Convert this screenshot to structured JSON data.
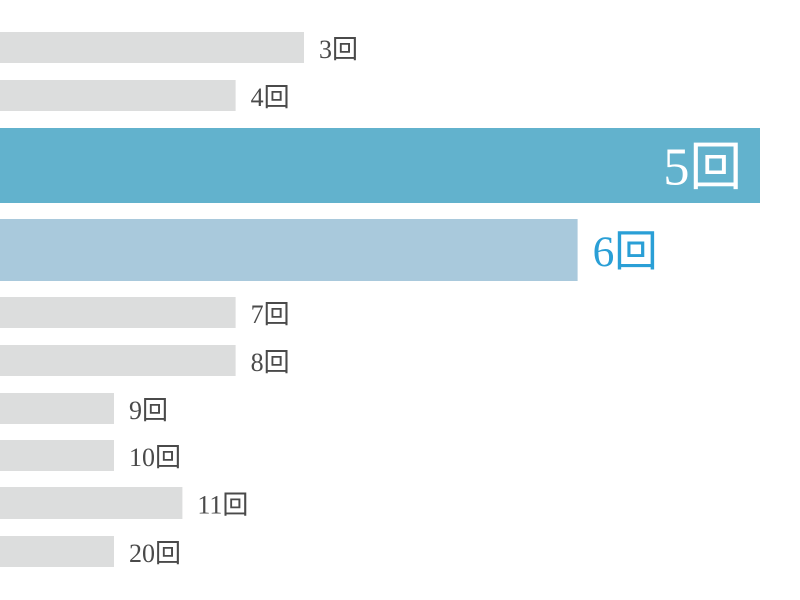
{
  "chart_data": {
    "type": "hbar",
    "categories": [
      "3回",
      "4回",
      "5回",
      "6回",
      "7回",
      "8回",
      "9回",
      "10回",
      "11回",
      "20回"
    ],
    "values": [
      40,
      31,
      100,
      76,
      31,
      31,
      15,
      15,
      24,
      15
    ],
    "colors": [
      "#dcdddd",
      "#dcdddd",
      "#62b2cd",
      "#a9c9dc",
      "#dcdddd",
      "#dcdddd",
      "#dcdddd",
      "#dcdddd",
      "#dcdddd",
      "#dcdddd"
    ],
    "label_colors": [
      "#4a4a4a",
      "#4a4a4a",
      "#ffffff",
      "#2a9fd6",
      "#4a4a4a",
      "#4a4a4a",
      "#4a4a4a",
      "#4a4a4a",
      "#4a4a4a",
      "#4a4a4a"
    ],
    "xlim": [
      0,
      100
    ]
  }
}
